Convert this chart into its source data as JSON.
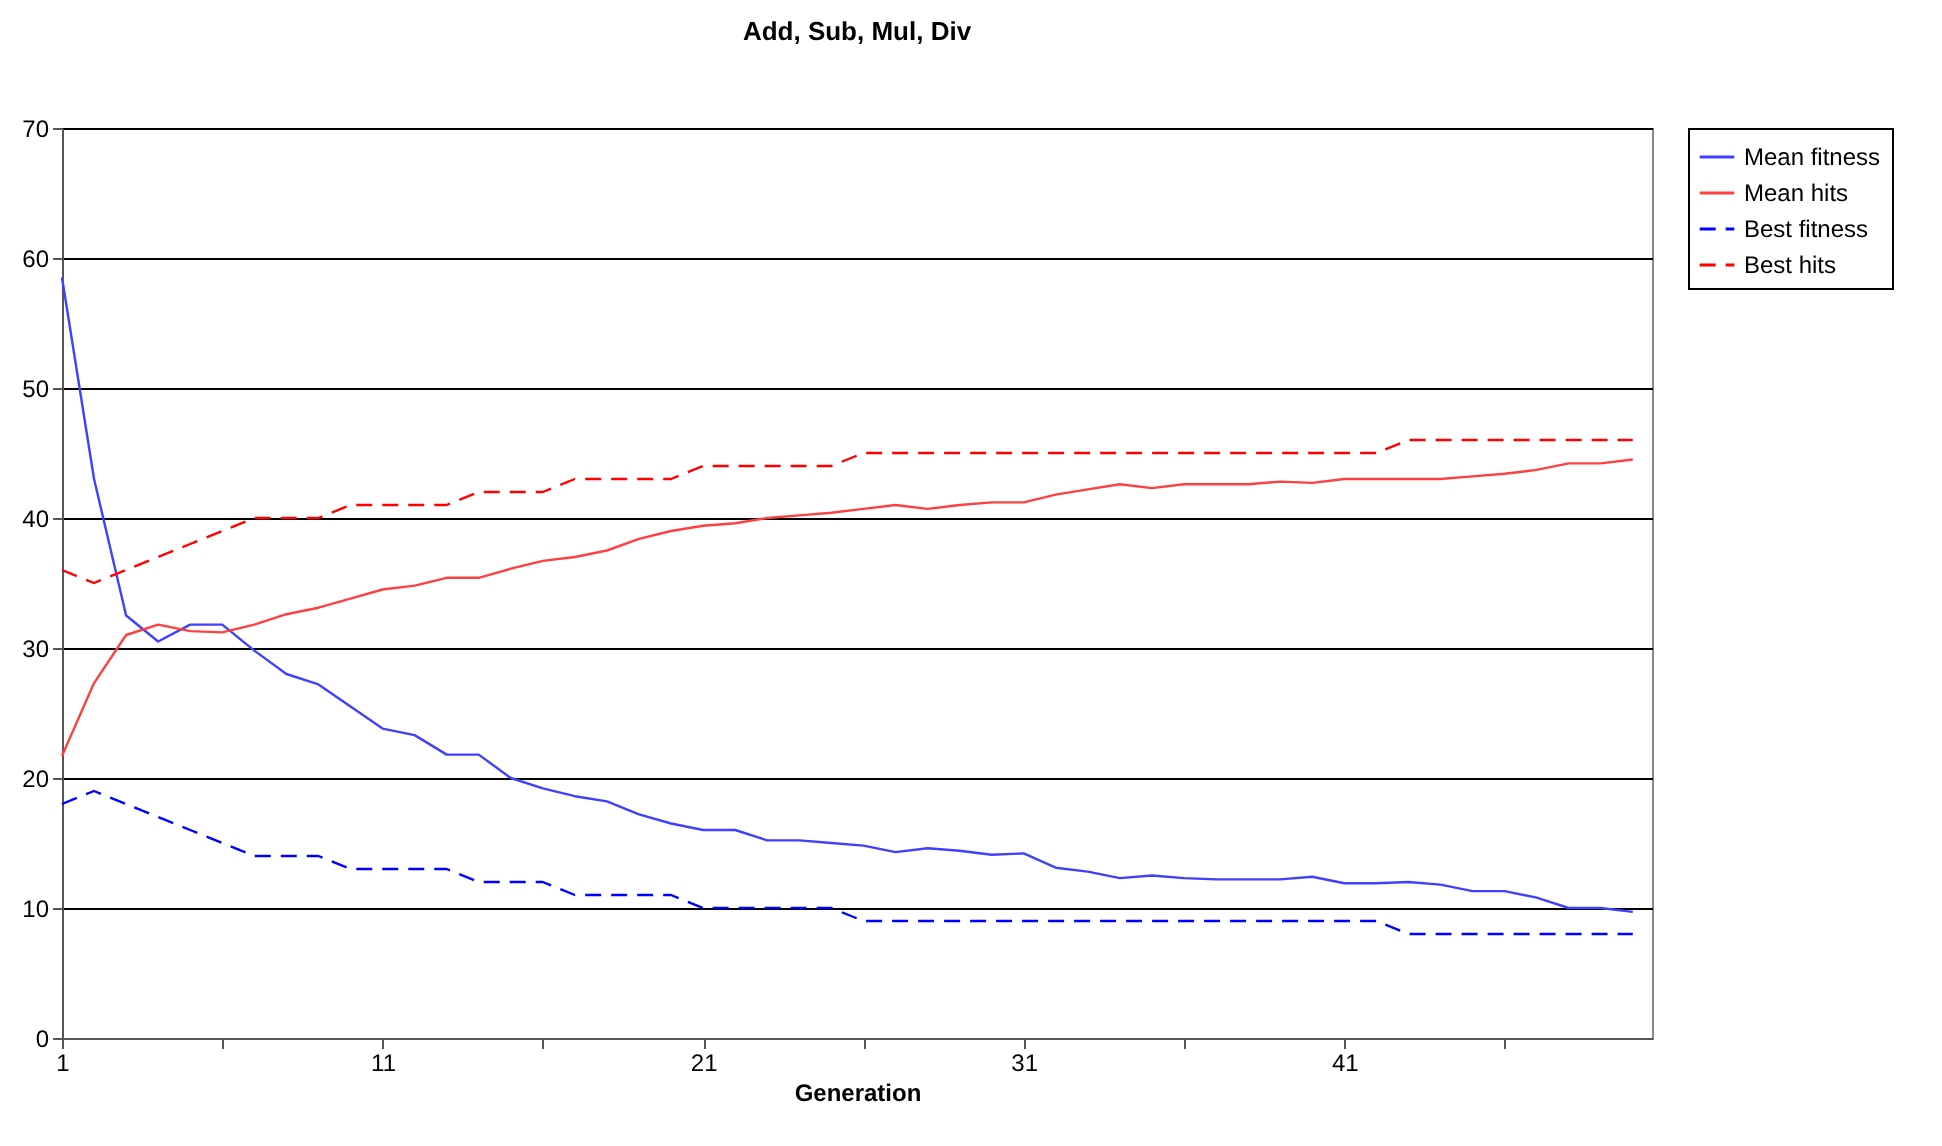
{
  "chart_data": {
    "type": "line",
    "title": "Add, Sub, Mul, Div",
    "xlabel": "Generation",
    "x": [
      1,
      2,
      3,
      4,
      5,
      6,
      7,
      8,
      9,
      10,
      11,
      12,
      13,
      14,
      15,
      16,
      17,
      18,
      19,
      20,
      21,
      22,
      23,
      24,
      25,
      26,
      27,
      28,
      29,
      30,
      31,
      32,
      33,
      34,
      35,
      36,
      37,
      38,
      39,
      40,
      41,
      42,
      43,
      44,
      45,
      46,
      47,
      48,
      49,
      50
    ],
    "xlim": [
      1,
      50.6
    ],
    "xticks": [
      1,
      {
        "value": 6,
        "label": null
      },
      11,
      {
        "value": 16,
        "label": null
      },
      21,
      {
        "value": 26,
        "label": null
      },
      31,
      {
        "value": 36,
        "label": null
      },
      41,
      {
        "value": 46,
        "label": null
      }
    ],
    "ylim": [
      0,
      70
    ],
    "yticks": [
      0,
      10,
      20,
      30,
      40,
      50,
      60,
      70
    ],
    "grid": "y",
    "legend": "right",
    "marker": "none",
    "series": [
      {
        "name": "Mean fitness",
        "color": "#4040ff",
        "line_style": "solid",
        "values": [
          58.5,
          43,
          32.5,
          30.5,
          31.8,
          31.8,
          29.8,
          28,
          27.2,
          25.5,
          23.8,
          23.3,
          21.8,
          21.8,
          20,
          19.2,
          18.6,
          18.2,
          17.2,
          16.5,
          16,
          16,
          15.2,
          15.2,
          15,
          14.8,
          14.3,
          14.6,
          14.4,
          14.1,
          14.2,
          13.1,
          12.8,
          12.3,
          12.5,
          12.3,
          12.2,
          12.2,
          12.2,
          12.4,
          11.9,
          11.9,
          12,
          11.8,
          11.3,
          11.3,
          10.8,
          10,
          10,
          9.7
        ]
      },
      {
        "name": "Mean hits",
        "color": "#ff4040",
        "line_style": "solid",
        "values": [
          21.7,
          27.3,
          31,
          31.8,
          31.3,
          31.2,
          31.8,
          32.6,
          33.1,
          33.8,
          34.5,
          34.8,
          35.4,
          35.4,
          36.1,
          36.7,
          37,
          37.5,
          38.4,
          39,
          39.4,
          39.6,
          40,
          40.2,
          40.4,
          40.7,
          41,
          40.7,
          41,
          41.2,
          41.2,
          41.8,
          42.2,
          42.6,
          42.3,
          42.6,
          42.6,
          42.6,
          42.8,
          42.7,
          43,
          43,
          43,
          43,
          43.2,
          43.4,
          43.7,
          44.2,
          44.2,
          44.5
        ]
      },
      {
        "name": "Best fitness",
        "color": "#0000ff",
        "line_style": "dashed",
        "values": [
          18,
          19,
          18,
          17,
          16,
          15,
          14,
          14,
          14,
          13,
          13,
          13,
          13,
          12,
          12,
          12,
          11,
          11,
          11,
          11,
          10,
          10,
          10,
          10,
          10,
          9,
          9,
          9,
          9,
          9,
          9,
          9,
          9,
          9,
          9,
          9,
          9,
          9,
          9,
          9,
          9,
          9,
          8,
          8,
          8,
          8,
          8,
          8,
          8,
          8
        ]
      },
      {
        "name": "Best hits",
        "color": "#ff0000",
        "line_style": "dashed",
        "values": [
          36,
          35,
          36,
          37,
          38,
          39,
          40,
          40,
          40,
          41,
          41,
          41,
          41,
          42,
          42,
          42,
          43,
          43,
          43,
          43,
          44,
          44,
          44,
          44,
          44,
          45,
          45,
          45,
          45,
          45,
          45,
          45,
          45,
          45,
          45,
          45,
          45,
          45,
          45,
          45,
          45,
          45,
          46,
          46,
          46,
          46,
          46,
          46,
          46,
          46
        ]
      }
    ]
  }
}
